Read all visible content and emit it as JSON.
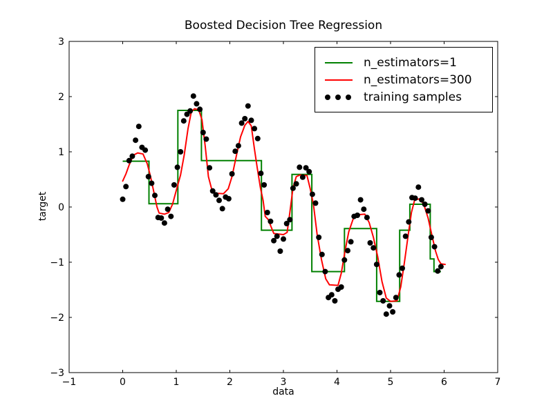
{
  "chart_data": {
    "type": "mixed",
    "title": "Boosted Decision Tree Regression",
    "xlabel": "data",
    "ylabel": "target",
    "xlim": [
      -1,
      7
    ],
    "ylim": [
      -3,
      3
    ],
    "grid": false,
    "x_ticks": [
      -1,
      0,
      1,
      2,
      3,
      4,
      5,
      6,
      7
    ],
    "x_tick_labels": [
      "−1",
      "0",
      "1",
      "2",
      "3",
      "4",
      "5",
      "6",
      "7"
    ],
    "y_ticks": [
      -3,
      -2,
      -1,
      0,
      1,
      2,
      3
    ],
    "y_tick_labels": [
      "−3",
      "−2",
      "−1",
      "0",
      "1",
      "2",
      "3"
    ],
    "legend": {
      "position": "upper right",
      "entries": [
        {
          "label": "n_estimators=1",
          "type": "line",
          "color": "#008000"
        },
        {
          "label": "n_estimators=300",
          "type": "line",
          "color": "#ff0000"
        },
        {
          "label": "training samples",
          "type": "scatter",
          "color": "#000000"
        }
      ]
    },
    "series": [
      {
        "name": "n_estimators=1",
        "type": "step",
        "color": "#008000",
        "linewidth": 2,
        "steps": [
          [
            0.0,
            0.49,
            0.83
          ],
          [
            0.49,
            1.03,
            0.06
          ],
          [
            1.03,
            1.47,
            1.75
          ],
          [
            1.47,
            2.59,
            0.84
          ],
          [
            2.59,
            3.16,
            -0.42
          ],
          [
            3.16,
            3.53,
            0.59
          ],
          [
            3.53,
            4.14,
            -1.17
          ],
          [
            4.14,
            4.74,
            -0.39
          ],
          [
            4.74,
            5.17,
            -1.71
          ],
          [
            5.17,
            5.36,
            -0.42
          ],
          [
            5.36,
            5.74,
            0.05
          ],
          [
            5.74,
            5.81,
            -0.94
          ],
          [
            5.81,
            5.94,
            -1.17
          ]
        ]
      },
      {
        "name": "n_estimators=300",
        "type": "line",
        "color": "#ff0000",
        "linewidth": 2,
        "points": [
          [
            0.0,
            0.47
          ],
          [
            0.06,
            0.6
          ],
          [
            0.12,
            0.76
          ],
          [
            0.2,
            0.94
          ],
          [
            0.28,
            0.98
          ],
          [
            0.38,
            0.96
          ],
          [
            0.46,
            0.78
          ],
          [
            0.52,
            0.55
          ],
          [
            0.58,
            0.28
          ],
          [
            0.64,
            0.0
          ],
          [
            0.68,
            -0.11
          ],
          [
            0.78,
            -0.13
          ],
          [
            0.86,
            -0.1
          ],
          [
            0.93,
            0.05
          ],
          [
            1.0,
            0.3
          ],
          [
            1.08,
            0.58
          ],
          [
            1.15,
            0.95
          ],
          [
            1.22,
            1.42
          ],
          [
            1.28,
            1.72
          ],
          [
            1.34,
            1.78
          ],
          [
            1.42,
            1.76
          ],
          [
            1.48,
            1.58
          ],
          [
            1.54,
            1.1
          ],
          [
            1.6,
            0.55
          ],
          [
            1.66,
            0.33
          ],
          [
            1.72,
            0.25
          ],
          [
            1.88,
            0.24
          ],
          [
            1.97,
            0.33
          ],
          [
            2.04,
            0.55
          ],
          [
            2.12,
            0.92
          ],
          [
            2.2,
            1.27
          ],
          [
            2.28,
            1.48
          ],
          [
            2.34,
            1.55
          ],
          [
            2.4,
            1.47
          ],
          [
            2.46,
            1.05
          ],
          [
            2.51,
            0.72
          ],
          [
            2.57,
            0.35
          ],
          [
            2.62,
            0.12
          ],
          [
            2.66,
            -0.17
          ],
          [
            2.72,
            -0.23
          ],
          [
            2.77,
            -0.36
          ],
          [
            2.82,
            -0.48
          ],
          [
            3.0,
            -0.5
          ],
          [
            3.07,
            -0.46
          ],
          [
            3.12,
            -0.1
          ],
          [
            3.18,
            0.35
          ],
          [
            3.24,
            0.55
          ],
          [
            3.31,
            0.58
          ],
          [
            3.44,
            0.57
          ],
          [
            3.5,
            0.33
          ],
          [
            3.56,
            0.05
          ],
          [
            3.63,
            -0.5
          ],
          [
            3.71,
            -0.95
          ],
          [
            3.79,
            -1.3
          ],
          [
            3.86,
            -1.41
          ],
          [
            4.02,
            -1.42
          ],
          [
            4.08,
            -1.2
          ],
          [
            4.15,
            -0.8
          ],
          [
            4.22,
            -0.45
          ],
          [
            4.3,
            -0.22
          ],
          [
            4.38,
            -0.14
          ],
          [
            4.52,
            -0.13
          ],
          [
            4.6,
            -0.28
          ],
          [
            4.68,
            -0.55
          ],
          [
            4.76,
            -0.9
          ],
          [
            4.84,
            -1.35
          ],
          [
            4.92,
            -1.65
          ],
          [
            5.0,
            -1.71
          ],
          [
            5.12,
            -1.7
          ],
          [
            5.19,
            -1.45
          ],
          [
            5.26,
            -1.0
          ],
          [
            5.33,
            -0.5
          ],
          [
            5.39,
            -0.1
          ],
          [
            5.45,
            0.13
          ],
          [
            5.56,
            0.15
          ],
          [
            5.63,
            0.02
          ],
          [
            5.7,
            -0.2
          ],
          [
            5.78,
            -0.55
          ],
          [
            5.84,
            -0.8
          ],
          [
            5.89,
            -0.95
          ],
          [
            5.94,
            -1.03
          ],
          [
            6.02,
            -1.04
          ]
        ]
      },
      {
        "name": "training samples",
        "type": "scatter",
        "color": "#000000",
        "marker_radius": 4,
        "x": [
          0.0,
          0.06,
          0.12,
          0.18,
          0.24,
          0.3,
          0.36,
          0.42,
          0.48,
          0.54,
          0.6,
          0.66,
          0.72,
          0.78,
          0.84,
          0.9,
          0.96,
          1.02,
          1.08,
          1.14,
          1.2,
          1.26,
          1.32,
          1.38,
          1.44,
          1.5,
          1.56,
          1.62,
          1.68,
          1.74,
          1.8,
          1.86,
          1.92,
          1.98,
          2.04,
          2.1,
          2.16,
          2.22,
          2.28,
          2.34,
          2.4,
          2.46,
          2.52,
          2.58,
          2.64,
          2.7,
          2.76,
          2.82,
          2.88,
          2.94,
          3.0,
          3.06,
          3.12,
          3.18,
          3.24,
          3.3,
          3.36,
          3.42,
          3.48,
          3.54,
          3.6,
          3.66,
          3.72,
          3.78,
          3.84,
          3.9,
          3.96,
          4.02,
          4.08,
          4.14,
          4.2,
          4.26,
          4.32,
          4.38,
          4.44,
          4.5,
          4.56,
          4.62,
          4.68,
          4.74,
          4.8,
          4.86,
          4.92,
          4.98,
          5.04,
          5.1,
          5.16,
          5.22,
          5.28,
          5.34,
          5.4,
          5.46,
          5.52,
          5.58,
          5.64,
          5.7,
          5.76,
          5.82,
          5.88,
          5.94
        ],
        "y": [
          0.14,
          0.37,
          0.84,
          0.92,
          1.21,
          1.46,
          1.08,
          1.03,
          0.55,
          0.43,
          0.21,
          -0.19,
          -0.2,
          -0.29,
          -0.04,
          -0.17,
          0.4,
          0.72,
          1.0,
          1.56,
          1.68,
          1.74,
          2.01,
          1.87,
          1.77,
          1.35,
          1.23,
          0.71,
          0.29,
          0.22,
          0.12,
          -0.03,
          0.18,
          0.15,
          0.6,
          1.01,
          1.11,
          1.52,
          1.6,
          1.83,
          1.57,
          1.42,
          1.24,
          0.61,
          0.4,
          -0.1,
          -0.26,
          -0.61,
          -0.53,
          -0.8,
          -0.58,
          -0.3,
          -0.23,
          0.34,
          0.42,
          0.72,
          0.54,
          0.71,
          0.64,
          0.23,
          0.07,
          -0.55,
          -0.86,
          -1.17,
          -1.64,
          -1.59,
          -1.7,
          -1.49,
          -1.45,
          -0.96,
          -0.79,
          -0.63,
          -0.17,
          -0.15,
          0.13,
          -0.04,
          -0.19,
          -0.65,
          -0.74,
          -1.04,
          -1.55,
          -1.7,
          -1.94,
          -1.79,
          -1.9,
          -1.64,
          -1.23,
          -1.11,
          -0.53,
          -0.27,
          0.17,
          0.16,
          0.36,
          0.13,
          0.05,
          -0.07,
          -0.55,
          -0.72,
          -1.16,
          -1.08
        ]
      }
    ],
    "colors": {
      "axes": "#000000",
      "background": "#ffffff",
      "tick_label": "#000000"
    }
  }
}
